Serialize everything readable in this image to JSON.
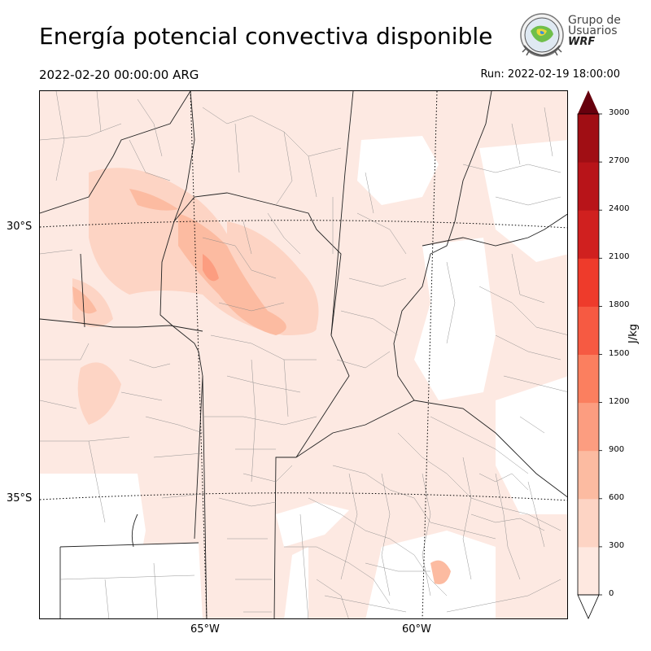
{
  "header": {
    "title": "Energía potencial convectiva disponible",
    "valid_time": "2022-02-20 00:00:00 ARG",
    "run_label": "Run: 2022-02-19 18:00:00"
  },
  "logo": {
    "line1": "Grupo de",
    "line2": "Usuarios",
    "line3": "WRF"
  },
  "map": {
    "lat_labels": [
      "30°S",
      "35°S"
    ],
    "lon_labels": [
      "65°W",
      "60°W"
    ]
  },
  "colorbar": {
    "unit": "J/kg",
    "ticks": [
      "0",
      "300",
      "600",
      "900",
      "1200",
      "1500",
      "1800",
      "2100",
      "2400",
      "2700",
      "3000"
    ],
    "colors": [
      "#fee8e0",
      "#fdd4c4",
      "#fcbba1",
      "#fc9d80",
      "#fb7f5f",
      "#f65a42",
      "#ee3b2b",
      "#d0201f",
      "#b81419",
      "#a00e14",
      "#7a0a0e"
    ],
    "extend_color": "#67000d"
  }
}
